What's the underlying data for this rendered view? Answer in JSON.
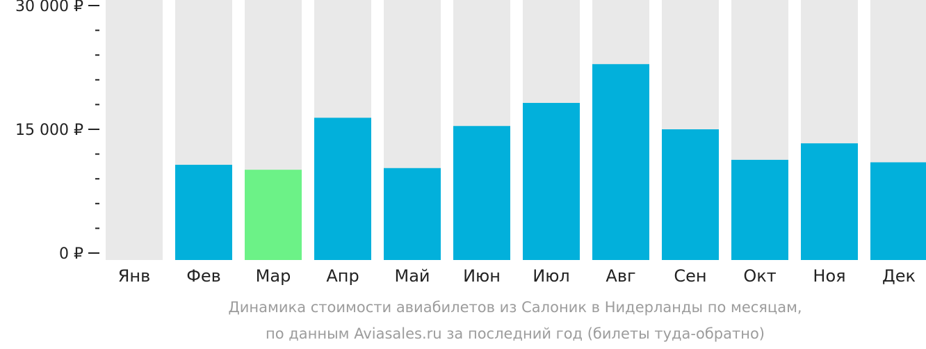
{
  "chart_data": {
    "type": "bar",
    "categories": [
      "Янв",
      "Фев",
      "Мар",
      "Апр",
      "Май",
      "Июн",
      "Июл",
      "Авг",
      "Сен",
      "Окт",
      "Ноя",
      "Дек"
    ],
    "values": [
      null,
      10700,
      10100,
      16400,
      10300,
      15400,
      18200,
      22900,
      15000,
      11300,
      13300,
      11000
    ],
    "ylim": [
      0,
      30000
    ],
    "yticks": [
      {
        "value": 0,
        "label": "0 ₽"
      },
      {
        "value": 15000,
        "label": "15 000 ₽"
      },
      {
        "value": 30000,
        "label": "30 000 ₽"
      }
    ],
    "minor_tick_step": 3000,
    "highlight_index": 2,
    "colors": {
      "bar": "#02b0db",
      "highlight": "#6cf287",
      "background_column": "#e9e9e9",
      "axis_text": "#222222",
      "caption": "#9c9c9c"
    },
    "grid": false,
    "legend": "none"
  },
  "caption": {
    "line1": "Динамика стоимости авиабилетов из Салоник в Нидерланды по месяцам,",
    "line2": "по данным Aviasales.ru за последний год (билеты туда-обратно)"
  }
}
